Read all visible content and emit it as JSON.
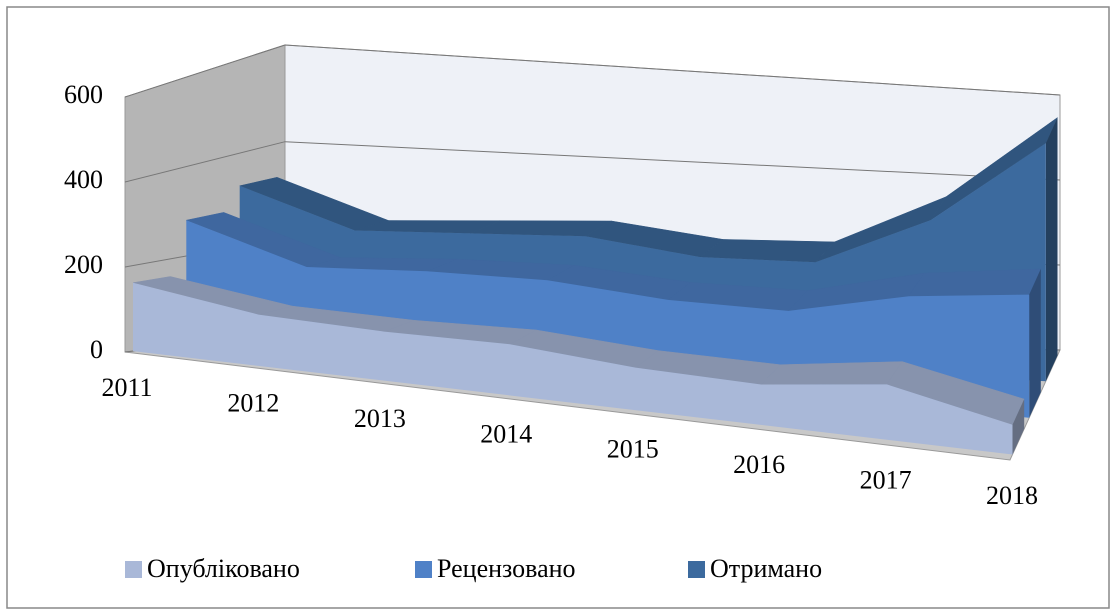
{
  "chart_data": {
    "type": "area3d",
    "categories": [
      "2011",
      "2012",
      "2013",
      "2014",
      "2015",
      "2016",
      "2017",
      "2018"
    ],
    "series": [
      {
        "name": "Опубліковано",
        "color": "#a9b8d8",
        "values": [
          160,
          120,
          115,
          120,
          100,
          95,
          130,
          70
        ]
      },
      {
        "name": "Рецензовано",
        "color": "#4f81c7",
        "values": [
          280,
          200,
          215,
          220,
          200,
          200,
          260,
          290
        ]
      },
      {
        "name": "Отримано",
        "color": "#3c6a9e",
        "values": [
          330,
          250,
          260,
          270,
          240,
          245,
          360,
          560
        ]
      }
    ],
    "ylim": [
      0,
      600
    ],
    "yticks": [
      0,
      200,
      400,
      600
    ],
    "grid": true
  }
}
